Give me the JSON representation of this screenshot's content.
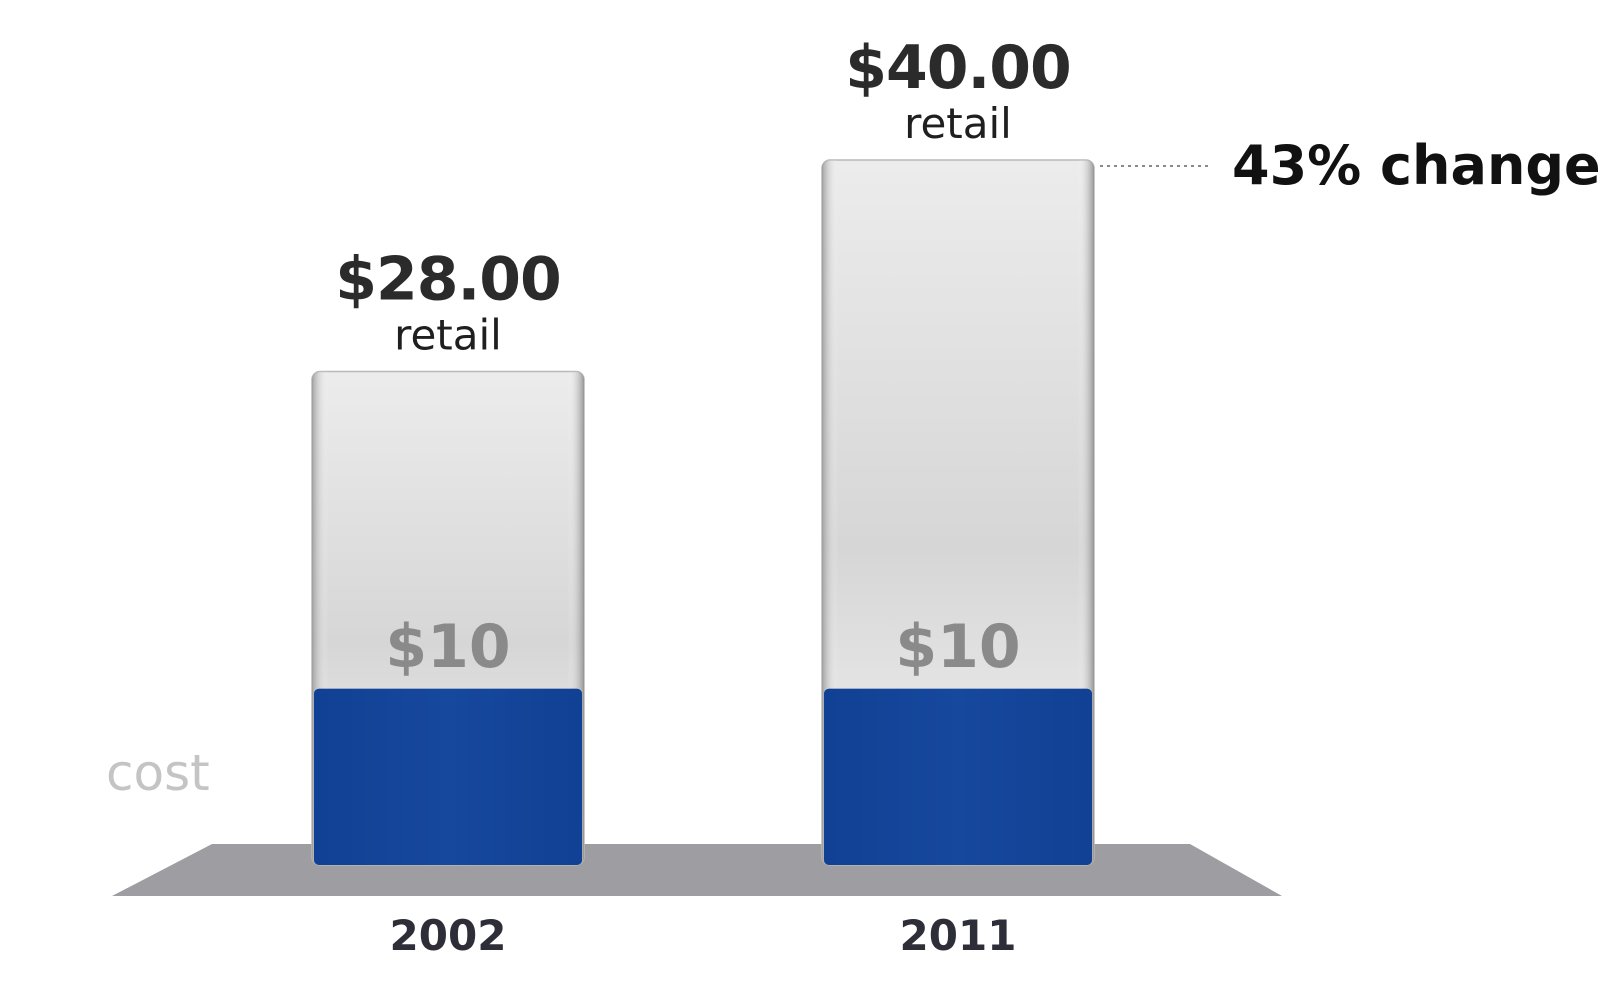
{
  "chart_data": {
    "type": "bar",
    "categories": [
      "2002",
      "2011"
    ],
    "series": [
      {
        "values": [
          10,
          10
        ]
      },
      {
        "values": [
          28,
          40
        ]
      }
    ],
    "cost_value_labels": [
      "$10",
      "$10"
    ],
    "retail_price_labels": [
      "$28.00",
      "$40.00"
    ],
    "retail_word_labels": [
      "retail",
      "retail"
    ],
    "cost_legend": "cost",
    "annotation": "43% change",
    "ylim": [
      0,
      40
    ],
    "grid": false,
    "colors": {
      "cost": "#14469c",
      "retail": "#e6e6e6",
      "floor": "#9d9da2"
    }
  }
}
